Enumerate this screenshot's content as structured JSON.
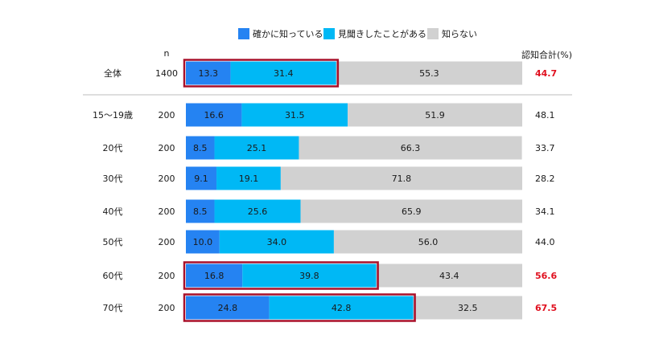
{
  "chart_data": {
    "type": "bar",
    "orientation": "horizontal",
    "stacked": true,
    "title": "",
    "n_header": "n",
    "total_header": "認知合計(%)",
    "legend_position": "top",
    "xlim": [
      0,
      100
    ],
    "series": [
      {
        "name": "確かに知っている",
        "color": "#2583f2",
        "values": [
          13.3,
          16.6,
          8.5,
          9.1,
          8.5,
          10.0,
          16.8,
          24.8
        ]
      },
      {
        "name": "見聞きしたことがある",
        "color": "#00b8f5",
        "values": [
          31.4,
          31.5,
          25.1,
          19.1,
          25.6,
          34.0,
          39.8,
          42.8
        ]
      },
      {
        "name": "知らない",
        "color": "#d1d1d1",
        "values": [
          55.3,
          51.9,
          66.3,
          71.8,
          65.9,
          56.0,
          43.4,
          32.5
        ]
      }
    ],
    "rows": [
      {
        "category": "全体",
        "n": "1400",
        "total": "44.7",
        "highlight": true
      },
      {
        "category": "15～19歳",
        "n": "200",
        "total": "48.1",
        "highlight": false
      },
      {
        "category": "20代",
        "n": "200",
        "total": "33.7",
        "highlight": false
      },
      {
        "category": "30代",
        "n": "200",
        "total": "28.2",
        "highlight": false
      },
      {
        "category": "40代",
        "n": "200",
        "total": "34.1",
        "highlight": false
      },
      {
        "category": "50代",
        "n": "200",
        "total": "44.0",
        "highlight": false
      },
      {
        "category": "60代",
        "n": "200",
        "total": "56.6",
        "highlight": true
      },
      {
        "category": "70代",
        "n": "200",
        "total": "67.5",
        "highlight": true
      }
    ]
  },
  "colors": {
    "text": "#1a1a1a",
    "highlight_text": "#e0101f",
    "highlight_box": "#a8102a",
    "divider": "#bdbdbd"
  }
}
